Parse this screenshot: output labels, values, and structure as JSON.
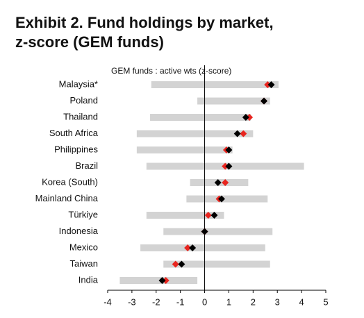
{
  "chart_data": {
    "type": "range-dot",
    "title": [
      "Exhibit 2. Fund holdings by market,",
      "z-score (GEM funds)"
    ],
    "subtitle": "GEM funds : active wts (z-score)",
    "categories": [
      "Malaysia*",
      "Poland",
      "Thailand",
      "South Africa",
      "Philippines",
      "Brazil",
      "Korea (South)",
      "Mainland China",
      "Türkiye",
      "Indonesia",
      "Mexico",
      "Taiwan",
      "India"
    ],
    "range": {
      "color": "#d3d3d3",
      "low": [
        -2.2,
        -0.3,
        -2.25,
        -2.8,
        -2.8,
        -2.4,
        -0.6,
        -0.75,
        -2.4,
        -1.7,
        -2.65,
        -1.7,
        -3.5
      ],
      "high": [
        3.05,
        2.7,
        1.9,
        2.0,
        1.15,
        4.1,
        1.8,
        2.6,
        0.8,
        2.8,
        2.5,
        2.7,
        -0.3
      ]
    },
    "series": [
      {
        "color": "#e8251f",
        "values": [
          2.6,
          2.45,
          1.85,
          1.6,
          0.9,
          0.85,
          0.85,
          0.6,
          0.15,
          0,
          -0.7,
          -1.2,
          -1.6
        ]
      },
      {
        "color": "#000000",
        "values": [
          2.75,
          2.45,
          1.7,
          1.35,
          1.0,
          1.0,
          0.55,
          0.7,
          0.4,
          0,
          -0.5,
          -0.95,
          -1.75
        ]
      }
    ],
    "xlim": [
      -4,
      5
    ],
    "xticks": [
      -4,
      -3,
      -2,
      -1,
      0,
      1,
      2,
      3,
      4,
      5
    ]
  }
}
